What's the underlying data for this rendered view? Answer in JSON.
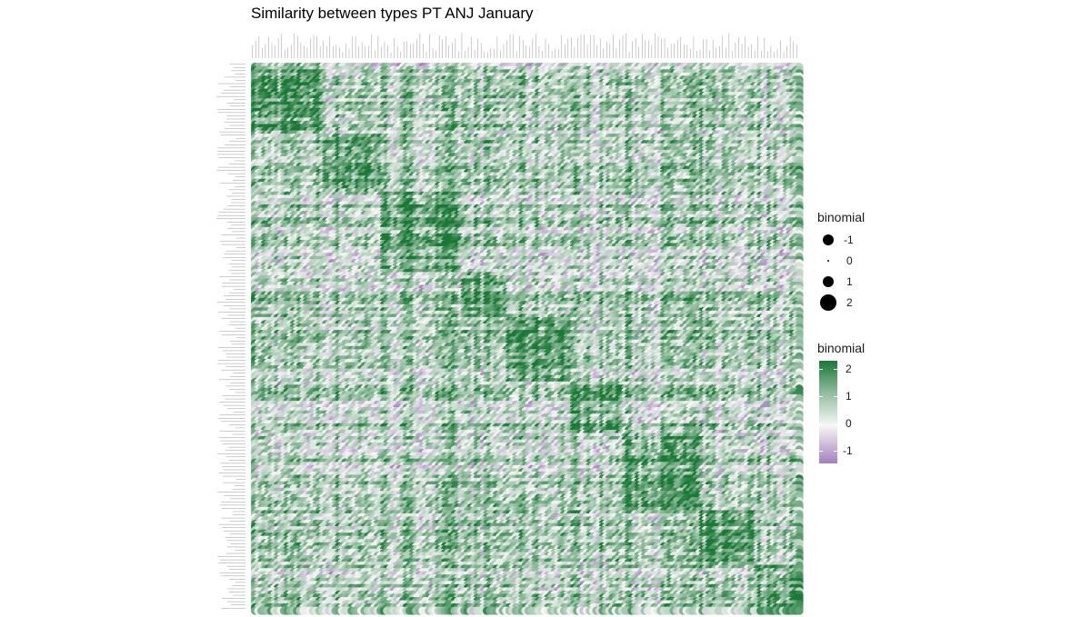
{
  "chart_data": {
    "type": "heatmap",
    "title": "Similarity between types PT ANJ January",
    "xlabel": "",
    "ylabel": "",
    "value_range": [
      -1.3,
      2.3
    ],
    "grid": false,
    "legend_placement": "right",
    "size_legend": {
      "title": "binomial",
      "entries": [
        {
          "label": "-1",
          "value": -1
        },
        {
          "label": "0",
          "value": 0
        },
        {
          "label": "1",
          "value": 1
        },
        {
          "label": "2",
          "value": 2
        }
      ]
    },
    "color_legend": {
      "title": "binomial",
      "ticks": [
        {
          "label": "2",
          "value": 2
        },
        {
          "label": "1",
          "value": 1
        },
        {
          "label": "0",
          "value": 0
        },
        {
          "label": "-1",
          "value": -1
        }
      ],
      "colors": {
        "low": "#a57fbd",
        "mid": "#f7f7f7",
        "high": "#1b7837"
      }
    },
    "colors": {
      "dark_green": "#1b7837",
      "mid_green": "#7fbf7b",
      "light_green": "#d9f0d3",
      "light_purple": "#e7d4e8",
      "purple": "#c2a5cf"
    },
    "n_types": 170,
    "block_pattern": "Dense similarity matrix of ~170 types; dark green (≈2) blocks cluster along the diagonal, with light purple (≈-1) bands between type groups. Individual tick labels are too small to read."
  }
}
